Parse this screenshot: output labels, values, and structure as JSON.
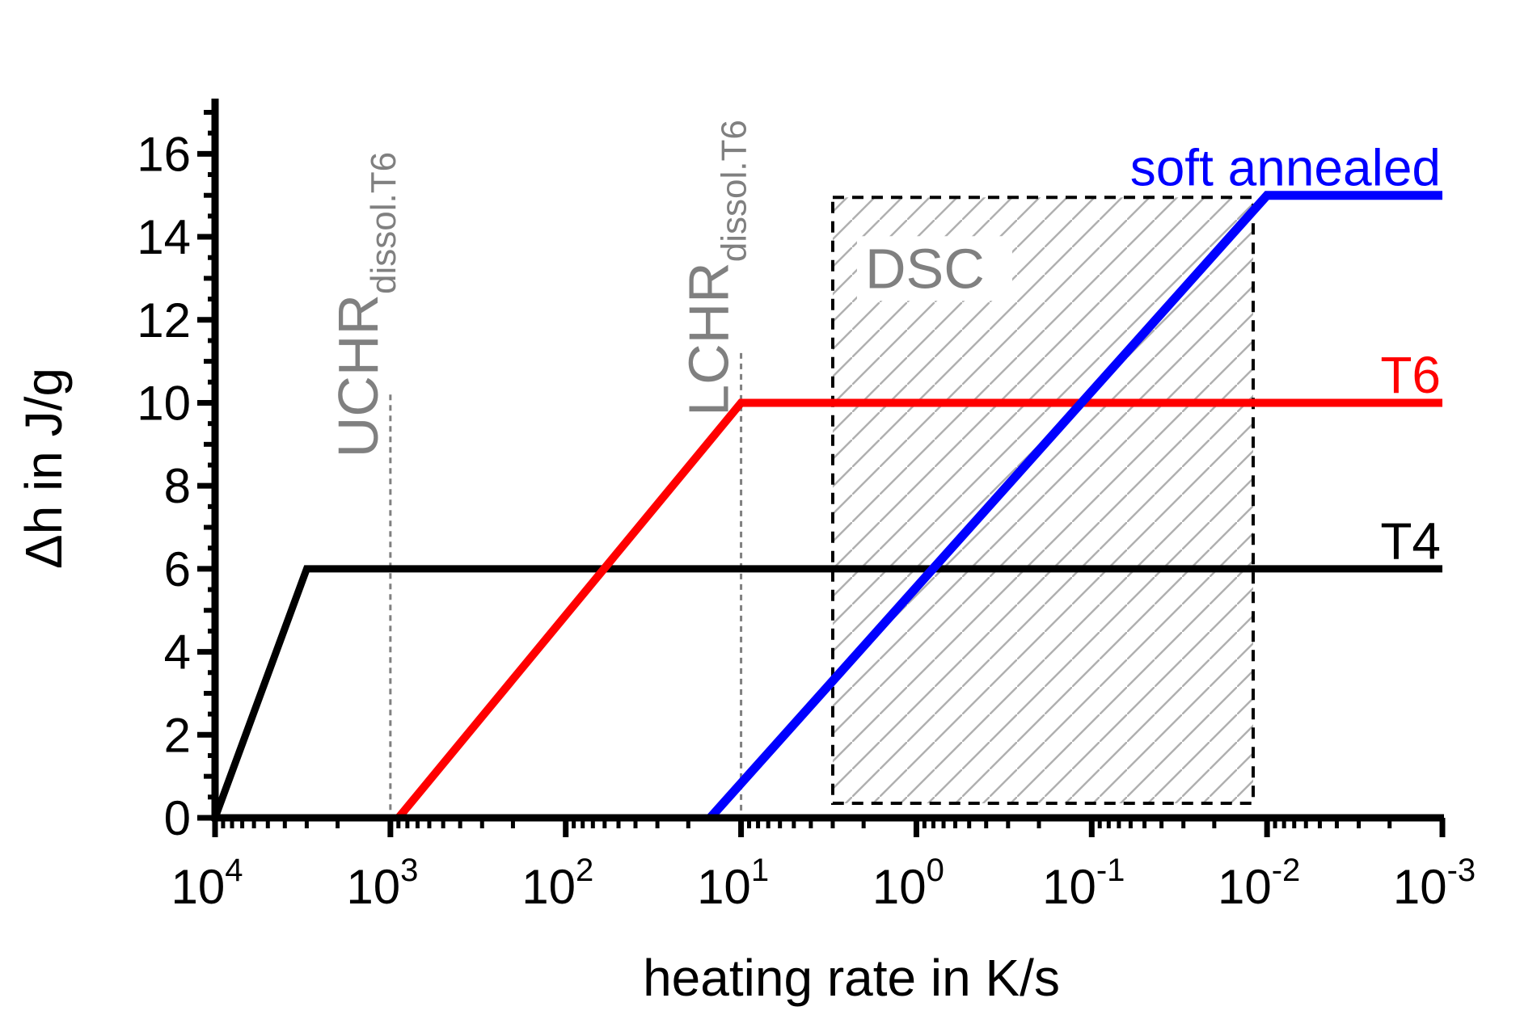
{
  "chart_data": {
    "type": "line",
    "xlabel": "heating rate in K/s",
    "ylabel": "Δh in J/g",
    "x_scale": "log",
    "x_reversed": true,
    "xlim": [
      10000,
      0.001
    ],
    "ylim": [
      0,
      17
    ],
    "x_ticks": [
      {
        "value": 10000,
        "base": "10",
        "exp": "4"
      },
      {
        "value": 1000,
        "base": "10",
        "exp": "3"
      },
      {
        "value": 100,
        "base": "10",
        "exp": "2"
      },
      {
        "value": 10,
        "base": "10",
        "exp": "1"
      },
      {
        "value": 1,
        "base": "10",
        "exp": "0"
      },
      {
        "value": 0.1,
        "base": "10",
        "exp": "-1"
      },
      {
        "value": 0.01,
        "base": "10",
        "exp": "-2"
      },
      {
        "value": 0.001,
        "base": "10",
        "exp": "-3"
      }
    ],
    "y_ticks": [
      0,
      2,
      4,
      6,
      8,
      10,
      12,
      14,
      16
    ],
    "series": [
      {
        "name": "T4",
        "color": "#000000",
        "points": [
          [
            10000,
            0
          ],
          [
            3000,
            6
          ],
          [
            0.001,
            6
          ]
        ]
      },
      {
        "name": "T6",
        "color": "#ff0000",
        "points": [
          [
            900,
            0
          ],
          [
            10,
            10
          ],
          [
            0.001,
            10
          ]
        ]
      },
      {
        "name": "soft annealed",
        "color": "#0000ff",
        "points": [
          [
            15,
            0
          ],
          [
            0.01,
            15
          ],
          [
            0.001,
            15
          ]
        ]
      }
    ],
    "reference_lines": [
      {
        "name": "UCHR",
        "sub": "dissol.T6",
        "x": 1000,
        "y_top": 10.2,
        "color": "#808080"
      },
      {
        "name": "LCHR",
        "sub": "dissol.T6",
        "x": 10,
        "y_top": 11.2,
        "color": "#808080"
      }
    ],
    "region": {
      "label": "DSC",
      "x_from": 3,
      "x_to": 0.012,
      "y_from": 0.35,
      "y_to": 14.95,
      "color": "#808080"
    }
  }
}
